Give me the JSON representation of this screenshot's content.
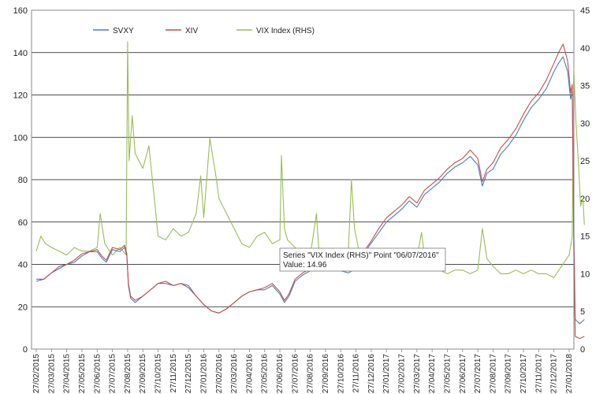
{
  "chart_data": {
    "type": "line",
    "title": "",
    "xlabel": "",
    "ylabel": "",
    "ylim": [
      0,
      160
    ],
    "y2lim": [
      0,
      45
    ],
    "yticks": [
      0,
      20,
      40,
      60,
      80,
      100,
      120,
      140,
      160
    ],
    "y2ticks": [
      0,
      5,
      10,
      15,
      20,
      25,
      30,
      35,
      40,
      45
    ],
    "grid": true,
    "legend_position": "top-left",
    "x_labels": [
      "27/02/2015",
      "27/03/2015",
      "27/04/2015",
      "27/05/2015",
      "27/06/2015",
      "27/07/2015",
      "27/08/2015",
      "27/09/2015",
      "27/10/2015",
      "27/11/2015",
      "27/12/2015",
      "27/01/2016",
      "27/02/2016",
      "27/03/2016",
      "27/04/2016",
      "27/05/2016",
      "27/06/2016",
      "27/07/2016",
      "27/08/2016",
      "27/09/2016",
      "27/10/2016",
      "27/11/2016",
      "27/12/2016",
      "27/01/2017",
      "27/02/2017",
      "27/03/2017",
      "27/04/2017",
      "27/05/2017",
      "27/06/2017",
      "27/07/2017",
      "27/08/2017",
      "27/09/2017",
      "27/10/2017",
      "27/11/2017",
      "27/12/2017",
      "27/01/2018"
    ],
    "series": [
      {
        "name": "SVXY",
        "axis": "left",
        "color": "#4a7ebb",
        "points": [
          [
            0,
            32
          ],
          [
            0.5,
            33
          ],
          [
            1,
            36
          ],
          [
            1.5,
            38
          ],
          [
            2,
            40
          ],
          [
            2.5,
            41
          ],
          [
            3,
            44
          ],
          [
            3.5,
            46
          ],
          [
            4,
            46
          ],
          [
            4.3,
            43
          ],
          [
            4.6,
            41
          ],
          [
            5,
            47
          ],
          [
            5.5,
            46
          ],
          [
            5.8,
            48
          ],
          [
            5.95,
            44
          ],
          [
            6.05,
            30
          ],
          [
            6.2,
            24
          ],
          [
            6.5,
            22
          ],
          [
            7,
            25
          ],
          [
            7.5,
            28
          ],
          [
            8,
            31
          ],
          [
            8.5,
            31
          ],
          [
            9,
            30
          ],
          [
            9.5,
            31
          ],
          [
            10,
            29
          ],
          [
            10.5,
            25
          ],
          [
            11,
            21
          ],
          [
            11.5,
            18
          ],
          [
            12,
            17
          ],
          [
            12.5,
            19
          ],
          [
            13,
            22
          ],
          [
            13.5,
            25
          ],
          [
            14,
            27
          ],
          [
            14.5,
            28
          ],
          [
            15,
            28
          ],
          [
            15.5,
            30
          ],
          [
            16,
            26
          ],
          [
            16.3,
            22
          ],
          [
            16.6,
            25
          ],
          [
            17,
            32
          ],
          [
            17.5,
            35
          ],
          [
            18,
            37
          ],
          [
            18.5,
            38
          ],
          [
            19,
            38
          ],
          [
            19.5,
            38
          ],
          [
            20,
            37
          ],
          [
            20.5,
            36
          ],
          [
            21,
            38
          ],
          [
            21.5,
            45
          ],
          [
            22,
            50
          ],
          [
            22.5,
            55
          ],
          [
            23,
            60
          ],
          [
            23.5,
            63
          ],
          [
            24,
            66
          ],
          [
            24.5,
            70
          ],
          [
            25,
            67
          ],
          [
            25.5,
            73
          ],
          [
            26,
            76
          ],
          [
            26.5,
            79
          ],
          [
            27,
            83
          ],
          [
            27.5,
            86
          ],
          [
            28,
            88
          ],
          [
            28.5,
            91
          ],
          [
            29,
            87
          ],
          [
            29.3,
            77
          ],
          [
            29.6,
            83
          ],
          [
            30,
            85
          ],
          [
            30.5,
            92
          ],
          [
            31,
            96
          ],
          [
            31.5,
            101
          ],
          [
            32,
            108
          ],
          [
            32.5,
            114
          ],
          [
            33,
            118
          ],
          [
            33.5,
            123
          ],
          [
            34,
            131
          ],
          [
            34.3,
            135
          ],
          [
            34.6,
            138
          ],
          [
            34.9,
            131
          ],
          [
            35.1,
            118
          ],
          [
            35.2,
            122
          ],
          [
            35.3,
            60
          ],
          [
            35.4,
            14
          ],
          [
            35.7,
            12
          ],
          [
            36,
            14
          ]
        ]
      },
      {
        "name": "XIV",
        "axis": "left",
        "color": "#c0504d",
        "points": [
          [
            0,
            33
          ],
          [
            0.5,
            33
          ],
          [
            1,
            36
          ],
          [
            1.5,
            39
          ],
          [
            2,
            40
          ],
          [
            2.5,
            42
          ],
          [
            3,
            45
          ],
          [
            3.5,
            46
          ],
          [
            4,
            47
          ],
          [
            4.3,
            44
          ],
          [
            4.6,
            42
          ],
          [
            5,
            48
          ],
          [
            5.5,
            47
          ],
          [
            5.8,
            49
          ],
          [
            5.95,
            45
          ],
          [
            6.05,
            31
          ],
          [
            6.2,
            25
          ],
          [
            6.5,
            23
          ],
          [
            7,
            25
          ],
          [
            7.5,
            28
          ],
          [
            8,
            31
          ],
          [
            8.5,
            32
          ],
          [
            9,
            30
          ],
          [
            9.5,
            31
          ],
          [
            10,
            30
          ],
          [
            10.5,
            25
          ],
          [
            11,
            21
          ],
          [
            11.5,
            18
          ],
          [
            12,
            17
          ],
          [
            12.5,
            19
          ],
          [
            13,
            22
          ],
          [
            13.5,
            25
          ],
          [
            14,
            27
          ],
          [
            14.5,
            28
          ],
          [
            15,
            29
          ],
          [
            15.5,
            31
          ],
          [
            16,
            27
          ],
          [
            16.3,
            23
          ],
          [
            16.6,
            26
          ],
          [
            17,
            33
          ],
          [
            17.5,
            36
          ],
          [
            18,
            38
          ],
          [
            18.5,
            39
          ],
          [
            19,
            39
          ],
          [
            19.5,
            39
          ],
          [
            20,
            38
          ],
          [
            20.5,
            37
          ],
          [
            21,
            39
          ],
          [
            21.5,
            46
          ],
          [
            22,
            51
          ],
          [
            22.5,
            57
          ],
          [
            23,
            62
          ],
          [
            23.5,
            65
          ],
          [
            24,
            68
          ],
          [
            24.5,
            72
          ],
          [
            25,
            69
          ],
          [
            25.5,
            75
          ],
          [
            26,
            78
          ],
          [
            26.5,
            81
          ],
          [
            27,
            85
          ],
          [
            27.5,
            88
          ],
          [
            28,
            90
          ],
          [
            28.5,
            94
          ],
          [
            29,
            90
          ],
          [
            29.3,
            79
          ],
          [
            29.6,
            85
          ],
          [
            30,
            88
          ],
          [
            30.5,
            95
          ],
          [
            31,
            99
          ],
          [
            31.5,
            104
          ],
          [
            32,
            111
          ],
          [
            32.5,
            117
          ],
          [
            33,
            121
          ],
          [
            33.5,
            127
          ],
          [
            34,
            135
          ],
          [
            34.3,
            140
          ],
          [
            34.6,
            144
          ],
          [
            34.9,
            136
          ],
          [
            35.1,
            121
          ],
          [
            35.2,
            125
          ],
          [
            35.3,
            50
          ],
          [
            35.4,
            6
          ],
          [
            35.7,
            5
          ],
          [
            36,
            6
          ]
        ]
      },
      {
        "name": "VIX Index (RHS)",
        "axis": "right",
        "color": "#9bbb59",
        "points": [
          [
            0,
            13
          ],
          [
            0.3,
            15
          ],
          [
            0.6,
            14
          ],
          [
            1,
            13.5
          ],
          [
            1.5,
            13
          ],
          [
            2,
            12.5
          ],
          [
            2.5,
            13.5
          ],
          [
            3,
            13
          ],
          [
            3.5,
            13
          ],
          [
            4,
            13.5
          ],
          [
            4.2,
            18
          ],
          [
            4.5,
            14
          ],
          [
            5,
            12.5
          ],
          [
            5.5,
            13.5
          ],
          [
            5.9,
            12.5
          ],
          [
            6.0,
            40.8
          ],
          [
            6.1,
            25
          ],
          [
            6.3,
            31
          ],
          [
            6.5,
            26
          ],
          [
            7,
            24
          ],
          [
            7.4,
            27
          ],
          [
            7.8,
            19
          ],
          [
            8,
            15
          ],
          [
            8.5,
            14.5
          ],
          [
            9,
            16
          ],
          [
            9.5,
            15
          ],
          [
            10,
            15.5
          ],
          [
            10.5,
            18
          ],
          [
            10.8,
            23
          ],
          [
            11,
            17.5
          ],
          [
            11.4,
            28
          ],
          [
            11.8,
            23
          ],
          [
            12,
            20
          ],
          [
            12.5,
            18
          ],
          [
            13,
            16
          ],
          [
            13.5,
            14
          ],
          [
            14,
            13.5
          ],
          [
            14.5,
            15
          ],
          [
            15,
            15.5
          ],
          [
            15.5,
            14
          ],
          [
            16,
            14.5
          ],
          [
            16.1,
            25.7
          ],
          [
            16.3,
            16
          ],
          [
            16.5,
            14.5
          ],
          [
            17,
            13.5
          ],
          [
            17.5,
            12
          ],
          [
            18,
            12.5
          ],
          [
            18.4,
            18
          ],
          [
            18.6,
            12
          ],
          [
            19,
            12
          ],
          [
            19.5,
            13
          ],
          [
            20,
            12.5
          ],
          [
            20.5,
            13
          ],
          [
            20.7,
            22.5
          ],
          [
            20.9,
            16
          ],
          [
            21.2,
            13
          ],
          [
            21.5,
            13
          ],
          [
            22,
            12
          ],
          [
            22.5,
            11.5
          ],
          [
            23,
            11
          ],
          [
            23.5,
            11.5
          ],
          [
            24,
            11
          ],
          [
            24.5,
            11.5
          ],
          [
            25,
            12
          ],
          [
            25.3,
            15.5
          ],
          [
            25.6,
            11
          ],
          [
            26,
            10.5
          ],
          [
            26.5,
            10.5
          ],
          [
            27,
            10
          ],
          [
            27.5,
            10.5
          ],
          [
            28,
            10.5
          ],
          [
            28.5,
            10
          ],
          [
            29,
            10.5
          ],
          [
            29.3,
            16
          ],
          [
            29.6,
            12
          ],
          [
            30,
            11
          ],
          [
            30.5,
            10
          ],
          [
            31,
            10
          ],
          [
            31.5,
            10.5
          ],
          [
            32,
            10
          ],
          [
            32.5,
            10.5
          ],
          [
            33,
            10
          ],
          [
            33.5,
            10
          ],
          [
            34,
            9.5
          ],
          [
            34.5,
            11
          ],
          [
            35,
            12.5
          ],
          [
            35.2,
            15
          ],
          [
            35.3,
            37.3
          ],
          [
            35.45,
            30
          ],
          [
            35.6,
            25
          ],
          [
            35.75,
            19
          ],
          [
            35.9,
            20
          ],
          [
            36,
            16.5
          ]
        ]
      }
    ],
    "tooltip": {
      "line1": "Series \"VIX Index (RHS)\" Point \"06/07/2016\"",
      "line2": "Value: 14.96"
    }
  }
}
